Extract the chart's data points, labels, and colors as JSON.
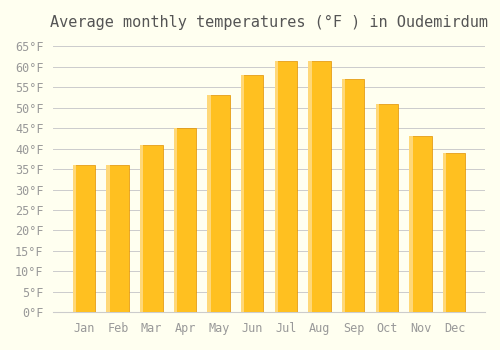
{
  "title": "Average monthly temperatures (°F ) in Oudemirdum",
  "months": [
    "Jan",
    "Feb",
    "Mar",
    "Apr",
    "May",
    "Jun",
    "Jul",
    "Aug",
    "Sep",
    "Oct",
    "Nov",
    "Dec"
  ],
  "values": [
    36,
    36,
    41,
    45,
    53,
    58,
    61.5,
    61.5,
    57,
    51,
    43,
    39
  ],
  "bar_color_main": "#FFC020",
  "bar_color_light": "#FFD878",
  "bar_color_dark": "#E09000",
  "background_color": "#FFFFF0",
  "grid_color": "#CCCCCC",
  "text_color": "#999999",
  "title_color": "#555555",
  "ylim": [
    0,
    67
  ],
  "yticks": [
    0,
    5,
    10,
    15,
    20,
    25,
    30,
    35,
    40,
    45,
    50,
    55,
    60,
    65
  ],
  "ytick_labels": [
    "0°F",
    "5°F",
    "10°F",
    "15°F",
    "20°F",
    "25°F",
    "30°F",
    "35°F",
    "40°F",
    "45°F",
    "50°F",
    "55°F",
    "60°F",
    "65°F"
  ],
  "title_fontsize": 11,
  "tick_fontsize": 8.5,
  "font_family": "monospace"
}
